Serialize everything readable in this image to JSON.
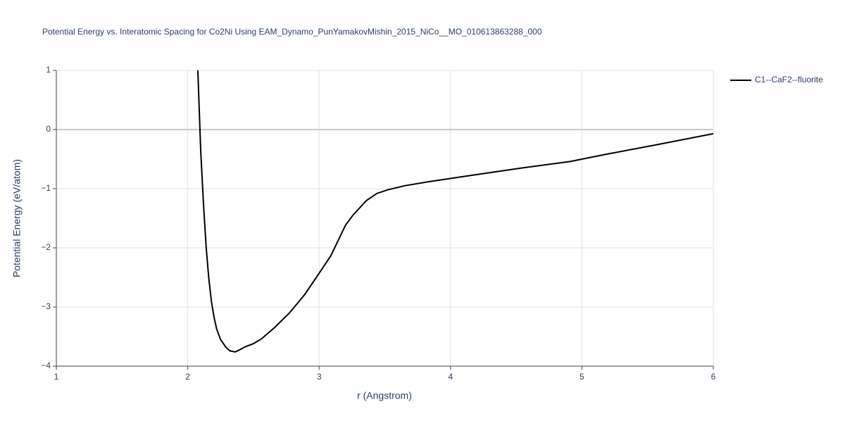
{
  "chart_data": {
    "type": "line",
    "title": "Potential Energy vs. Interatomic Spacing for Co2Ni Using EAM_Dynamo_PunYamakovMishin_2015_NiCo__MO_010613863288_000",
    "x_label": "r (Angstrom)",
    "y_label": "Potential Energy (eV/atom)",
    "x": [
      2.077,
      2.099,
      2.12,
      2.14,
      2.16,
      2.18,
      2.2,
      2.22,
      2.25,
      2.29,
      2.32,
      2.36,
      2.39,
      2.44,
      2.5,
      2.56,
      2.66,
      2.77,
      2.89,
      3.0,
      3.09,
      3.2,
      3.26,
      3.36,
      3.44,
      3.52,
      3.65,
      3.84,
      4.11,
      4.54,
      4.91,
      5.18,
      5.56,
      6.0
    ],
    "series": [
      {
        "name": "C1--CaF2--fluorite",
        "color": "#000000",
        "values": [
          1,
          -0.37,
          -1.26,
          -1.98,
          -2.51,
          -2.9,
          -3.17,
          -3.37,
          -3.55,
          -3.68,
          -3.74,
          -3.76,
          -3.73,
          -3.67,
          -3.62,
          -3.54,
          -3.35,
          -3.11,
          -2.79,
          -2.43,
          -2.13,
          -1.62,
          -1.44,
          -1.2,
          -1.08,
          -1.02,
          -0.95,
          -0.88,
          -0.79,
          -0.65,
          -0.54,
          -0.42,
          -0.26,
          -0.07
        ]
      }
    ],
    "xlim": [
      1,
      6
    ],
    "xticks": [
      1,
      2,
      3,
      4,
      5,
      6
    ],
    "ylim": [
      -4,
      1
    ],
    "yticks": [
      {
        "value": -4,
        "label": "−4"
      },
      {
        "value": -3,
        "label": "−3"
      },
      {
        "value": -2,
        "label": "−2"
      },
      {
        "value": -1,
        "label": "−1"
      },
      0,
      1
    ],
    "grid": true,
    "legend": "top-right"
  }
}
